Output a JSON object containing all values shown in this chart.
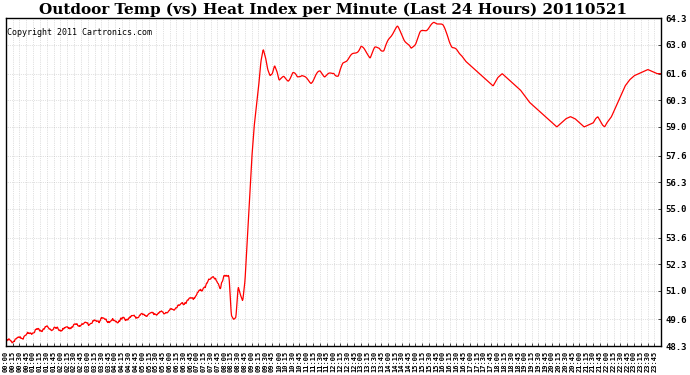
{
  "title": "Outdoor Temp (vs) Heat Index per Minute (Last 24 Hours) 20110521",
  "copyright": "Copyright 2011 Cartronics.com",
  "ymin": 48.3,
  "ymax": 64.3,
  "yticks": [
    48.3,
    49.6,
    51.0,
    52.3,
    53.6,
    55.0,
    56.3,
    57.6,
    59.0,
    60.3,
    61.6,
    63.0,
    64.3
  ],
  "line_color": "#ff0000",
  "bg_color": "#ffffff",
  "grid_color": "#aaaaaa",
  "title_fontsize": 11,
  "copyright_fontsize": 6,
  "keypoints": [
    [
      0,
      48.5
    ],
    [
      30,
      48.7
    ],
    [
      60,
      49.0
    ],
    [
      90,
      49.2
    ],
    [
      120,
      49.1
    ],
    [
      150,
      49.3
    ],
    [
      180,
      49.4
    ],
    [
      210,
      49.6
    ],
    [
      240,
      49.5
    ],
    [
      270,
      49.7
    ],
    [
      300,
      49.8
    ],
    [
      330,
      49.9
    ],
    [
      360,
      50.0
    ],
    [
      390,
      50.4
    ],
    [
      420,
      50.8
    ],
    [
      435,
      51.2
    ],
    [
      450,
      51.6
    ],
    [
      455,
      51.8
    ],
    [
      460,
      51.6
    ],
    [
      465,
      51.3
    ],
    [
      470,
      51.1
    ],
    [
      475,
      51.5
    ],
    [
      480,
      51.8
    ],
    [
      490,
      51.6
    ],
    [
      495,
      49.8
    ],
    [
      500,
      49.6
    ],
    [
      505,
      49.7
    ],
    [
      510,
      51.2
    ],
    [
      515,
      50.8
    ],
    [
      520,
      50.5
    ],
    [
      525,
      51.5
    ],
    [
      530,
      53.5
    ],
    [
      535,
      55.5
    ],
    [
      540,
      57.5
    ],
    [
      545,
      59.0
    ],
    [
      550,
      60.0
    ],
    [
      555,
      61.0
    ],
    [
      560,
      62.2
    ],
    [
      565,
      62.8
    ],
    [
      570,
      62.4
    ],
    [
      575,
      61.8
    ],
    [
      580,
      61.5
    ],
    [
      585,
      61.6
    ],
    [
      590,
      62.0
    ],
    [
      595,
      61.7
    ],
    [
      600,
      61.3
    ],
    [
      610,
      61.5
    ],
    [
      620,
      61.4
    ],
    [
      630,
      61.6
    ],
    [
      640,
      61.3
    ],
    [
      650,
      61.5
    ],
    [
      660,
      61.4
    ],
    [
      670,
      61.3
    ],
    [
      680,
      61.5
    ],
    [
      690,
      61.6
    ],
    [
      700,
      61.4
    ],
    [
      710,
      61.6
    ],
    [
      720,
      61.8
    ],
    [
      730,
      61.5
    ],
    [
      740,
      62.0
    ],
    [
      750,
      62.2
    ],
    [
      760,
      62.5
    ],
    [
      770,
      62.8
    ],
    [
      780,
      63.0
    ],
    [
      790,
      62.6
    ],
    [
      800,
      62.3
    ],
    [
      810,
      62.8
    ],
    [
      820,
      63.0
    ],
    [
      830,
      62.8
    ],
    [
      840,
      63.2
    ],
    [
      850,
      63.5
    ],
    [
      860,
      63.8
    ],
    [
      870,
      63.6
    ],
    [
      880,
      63.2
    ],
    [
      890,
      62.8
    ],
    [
      900,
      63.0
    ],
    [
      910,
      63.5
    ],
    [
      920,
      63.8
    ],
    [
      930,
      64.0
    ],
    [
      940,
      64.1
    ],
    [
      950,
      64.0
    ],
    [
      960,
      63.8
    ],
    [
      970,
      63.5
    ],
    [
      980,
      63.0
    ],
    [
      990,
      62.8
    ],
    [
      1000,
      62.5
    ],
    [
      1010,
      62.2
    ],
    [
      1020,
      62.0
    ],
    [
      1030,
      61.8
    ],
    [
      1040,
      61.6
    ],
    [
      1050,
      61.4
    ],
    [
      1060,
      61.2
    ],
    [
      1070,
      61.0
    ],
    [
      1080,
      61.4
    ],
    [
      1090,
      61.6
    ],
    [
      1100,
      61.4
    ],
    [
      1110,
      61.2
    ],
    [
      1120,
      61.0
    ],
    [
      1130,
      60.8
    ],
    [
      1140,
      60.5
    ],
    [
      1150,
      60.2
    ],
    [
      1160,
      60.0
    ],
    [
      1170,
      59.8
    ],
    [
      1180,
      59.6
    ],
    [
      1190,
      59.4
    ],
    [
      1200,
      59.2
    ],
    [
      1210,
      59.0
    ],
    [
      1220,
      59.2
    ],
    [
      1230,
      59.4
    ],
    [
      1240,
      59.5
    ],
    [
      1250,
      59.4
    ],
    [
      1260,
      59.2
    ],
    [
      1270,
      59.0
    ],
    [
      1280,
      59.1
    ],
    [
      1290,
      59.2
    ],
    [
      1295,
      59.4
    ],
    [
      1300,
      59.5
    ],
    [
      1305,
      59.3
    ],
    [
      1310,
      59.1
    ],
    [
      1315,
      59.0
    ],
    [
      1320,
      59.2
    ],
    [
      1330,
      59.5
    ],
    [
      1340,
      60.0
    ],
    [
      1350,
      60.5
    ],
    [
      1360,
      61.0
    ],
    [
      1370,
      61.3
    ],
    [
      1380,
      61.5
    ],
    [
      1390,
      61.6
    ],
    [
      1400,
      61.7
    ],
    [
      1410,
      61.8
    ],
    [
      1420,
      61.7
    ],
    [
      1430,
      61.6
    ],
    [
      1435,
      61.6
    ]
  ]
}
